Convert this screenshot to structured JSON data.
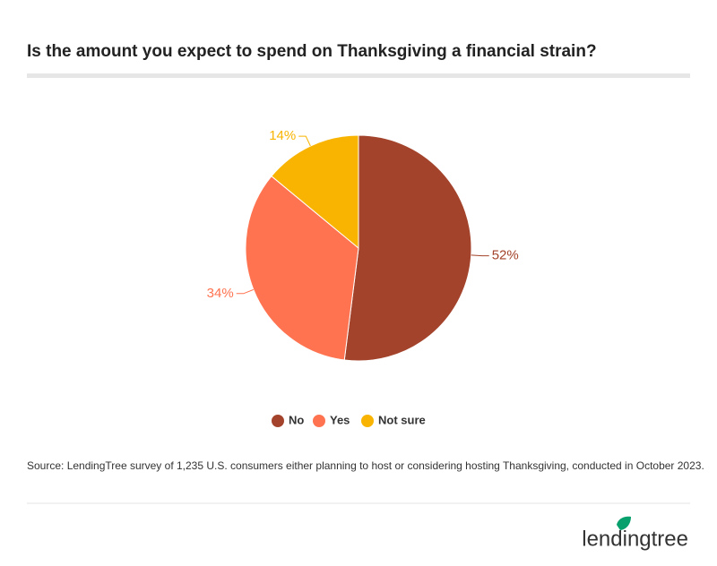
{
  "chart_data": {
    "type": "pie",
    "title": "Is the amount you expect to spend on Thanksgiving a financial strain?",
    "categories": [
      "No",
      "Yes",
      "Not sure"
    ],
    "values": [
      52,
      34,
      14
    ],
    "value_labels": [
      "52%",
      "34%",
      "14%"
    ],
    "colors": [
      "#a3432b",
      "#ff7350",
      "#f8b400"
    ],
    "source": "Source: LendingTree survey of 1,235 U.S. consumers either planning to host or considering hosting Thanksgiving, conducted in October 2023."
  },
  "brand": "lendingtree"
}
